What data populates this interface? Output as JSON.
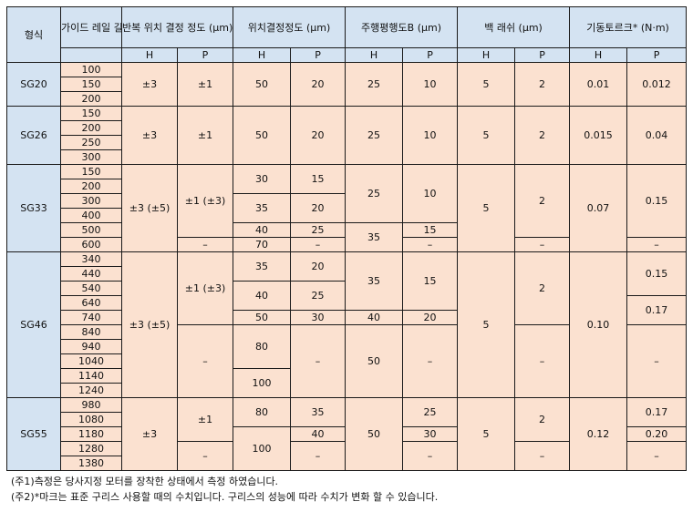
{
  "header": {
    "model": "형식",
    "rail_length": "가이드 레일 길이 (mm)",
    "repeat": "반복 위치 결정 정도 (μm)",
    "position": "위치결정정도 (μm)",
    "parallel": "주행평행도B (μm)",
    "backlash": "백 래쉬 (μm)",
    "torque": "기동토르크* (N·m)",
    "sub": [
      "H",
      "P",
      "H",
      "P",
      "H",
      "P",
      "H",
      "P",
      "H",
      "P"
    ]
  },
  "models": {
    "sg20": {
      "name": "SG20",
      "lengths": [
        "100",
        "150",
        "200"
      ],
      "repeat_h": "±3",
      "repeat_p": "±1",
      "pos_h": "50",
      "pos_p": "20",
      "par_h": "25",
      "par_p": "10",
      "back_h": "5",
      "back_p": "2",
      "tq_h": "0.01",
      "tq_p": "0.012"
    },
    "sg26": {
      "name": "SG26",
      "lengths": [
        "150",
        "200",
        "250",
        "300"
      ],
      "repeat_h": "±3",
      "repeat_p": "±1",
      "pos_h": "50",
      "pos_p": "20",
      "par_h": "25",
      "par_p": "10",
      "back_h": "5",
      "back_p": "2",
      "tq_h": "0.015",
      "tq_p": "0.04"
    },
    "sg33": {
      "name": "SG33",
      "lengths": [
        "150",
        "200",
        "300",
        "400",
        "500",
        "600"
      ],
      "repeat_h": "±3 (±5)",
      "repeat_p": "±1 (±3)",
      "repeat_p_600": "–",
      "pos_h": [
        "30",
        "35",
        "40",
        "70"
      ],
      "pos_p": [
        "15",
        "20",
        "25",
        "–"
      ],
      "par_h": [
        "25",
        "35"
      ],
      "par_p": [
        "10",
        "15",
        "–"
      ],
      "back_h": "5",
      "back_p": [
        "2",
        "–"
      ],
      "tq_h": "0.07",
      "tq_p": [
        "0.15",
        "–"
      ]
    },
    "sg46": {
      "name": "SG46",
      "lengths": [
        "340",
        "440",
        "540",
        "640",
        "740",
        "840",
        "940",
        "1040",
        "1140",
        "1240"
      ],
      "repeat_h": "±3 (±5)",
      "repeat_p": [
        "±1 (±3)",
        "–"
      ],
      "pos_h": [
        "35",
        "40",
        "50",
        "80",
        "100"
      ],
      "pos_p": [
        "20",
        "25",
        "30",
        "–"
      ],
      "par_h": [
        "35",
        "40",
        "50"
      ],
      "par_p": [
        "15",
        "20",
        "–"
      ],
      "back_h": "5",
      "back_p": [
        "2",
        "–"
      ],
      "tq_h": "0.10",
      "tq_p": [
        "0.15",
        "0.17",
        "–"
      ]
    },
    "sg55": {
      "name": "SG55",
      "lengths": [
        "980",
        "1080",
        "1180",
        "1280",
        "1380"
      ],
      "repeat_h": "±3",
      "repeat_p": [
        "±1",
        "–"
      ],
      "pos_h": [
        "80",
        "100"
      ],
      "pos_p": [
        "35",
        "40",
        "–"
      ],
      "par_h": "50",
      "par_p": [
        "25",
        "30",
        "–"
      ],
      "back_h": "5",
      "back_p": [
        "2",
        "–"
      ],
      "tq_h": "0.12",
      "tq_p": [
        "0.17",
        "0.20",
        "–"
      ]
    }
  },
  "notes": [
    "(주1)측정은 당사지정 모터를 장착한 상태에서 측정 하였습니다.",
    "(주2)*마크는 표준 구리스 사용할 때의 수치입니다. 구리스의 성능에 따라 수치가 변화 할 수 있습니다."
  ]
}
